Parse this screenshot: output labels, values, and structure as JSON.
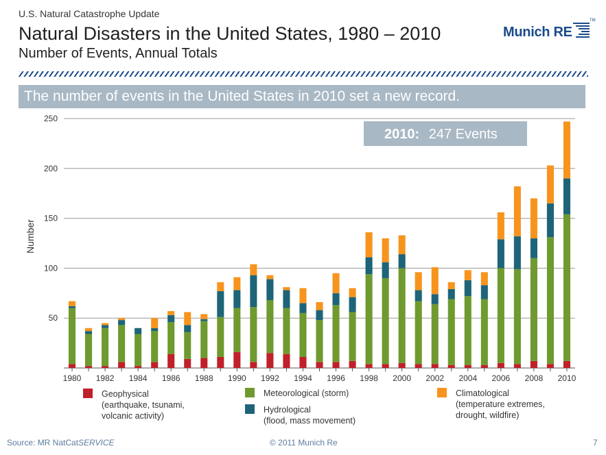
{
  "header": {
    "kicker": "U.S. Natural Catastrophe Update",
    "title": "Natural Disasters in the United States, 1980 – 2010",
    "subtitle": "Number of Events, Annual Totals",
    "logo_text": "Munich RE",
    "logo_tm": "TM"
  },
  "banner": {
    "text": "The number of events in the United States in 2010 set a new record."
  },
  "callout": {
    "year": "2010:",
    "value": "247 Events"
  },
  "legend": [
    {
      "label": "Geophysical",
      "detail": "(earthquake, tsunami,\nvolcanic activity)",
      "color": "#c0202a"
    },
    {
      "label": "Meteorological (storm)",
      "detail": "",
      "color": "#6f9a2f"
    },
    {
      "label": "Hydrological",
      "detail": "(flood, mass movement)",
      "color": "#1e6478"
    },
    {
      "label": "Climatological",
      "detail": "(temperature extremes,\ndrought, wildfire)",
      "color": "#f7941e"
    }
  ],
  "footer": {
    "source_prefix": "Source: MR NatCat",
    "source_italic": "SERVICE",
    "copyright": "© 2011 Munich Re",
    "page": "7"
  },
  "chart_data": {
    "type": "bar",
    "stacked": true,
    "ylabel": "Number",
    "xlabel": "",
    "ylim": [
      0,
      250
    ],
    "yticks": [
      50,
      100,
      150,
      200,
      250
    ],
    "grid": true,
    "x": [
      1980,
      1981,
      1982,
      1983,
      1984,
      1985,
      1986,
      1987,
      1988,
      1989,
      1990,
      1991,
      1992,
      1993,
      1994,
      1995,
      1996,
      1997,
      1998,
      1999,
      2000,
      2001,
      2002,
      2003,
      2004,
      2005,
      2006,
      2007,
      2008,
      2009,
      2010
    ],
    "xtick_labels": [
      "1980",
      "1982",
      "1984",
      "1986",
      "1988",
      "1990",
      "1992",
      "1994",
      "1996",
      "1998",
      "2000",
      "2002",
      "2004",
      "2006",
      "2008",
      "2010"
    ],
    "series": [
      {
        "name": "Geophysical",
        "color": "#c0202a",
        "values": [
          4,
          2,
          2,
          6,
          2,
          6,
          14,
          9,
          10,
          11,
          16,
          6,
          15,
          14,
          11,
          6,
          6,
          7,
          4,
          4,
          5,
          4,
          4,
          3,
          3,
          3,
          5,
          4,
          7,
          4,
          7
        ]
      },
      {
        "name": "Meteorological (storm)",
        "color": "#6f9a2f",
        "values": [
          56,
          32,
          38,
          37,
          32,
          31,
          32,
          27,
          37,
          40,
          44,
          55,
          53,
          46,
          44,
          42,
          57,
          49,
          90,
          86,
          95,
          63,
          60,
          66,
          69,
          66,
          95,
          95,
          103,
          127,
          147
        ]
      },
      {
        "name": "Hydrological",
        "color": "#1e6478",
        "values": [
          2,
          3,
          3,
          5,
          6,
          3,
          7,
          7,
          2,
          26,
          18,
          32,
          21,
          18,
          10,
          10,
          12,
          15,
          17,
          16,
          14,
          11,
          10,
          10,
          16,
          14,
          29,
          33,
          20,
          34,
          36
        ]
      },
      {
        "name": "Climatological",
        "color": "#f7941e",
        "values": [
          5,
          3,
          2,
          2,
          0,
          10,
          4,
          13,
          5,
          9,
          13,
          11,
          4,
          3,
          15,
          8,
          20,
          9,
          25,
          24,
          19,
          18,
          27,
          7,
          10,
          13,
          27,
          50,
          40,
          38,
          57
        ]
      }
    ]
  }
}
